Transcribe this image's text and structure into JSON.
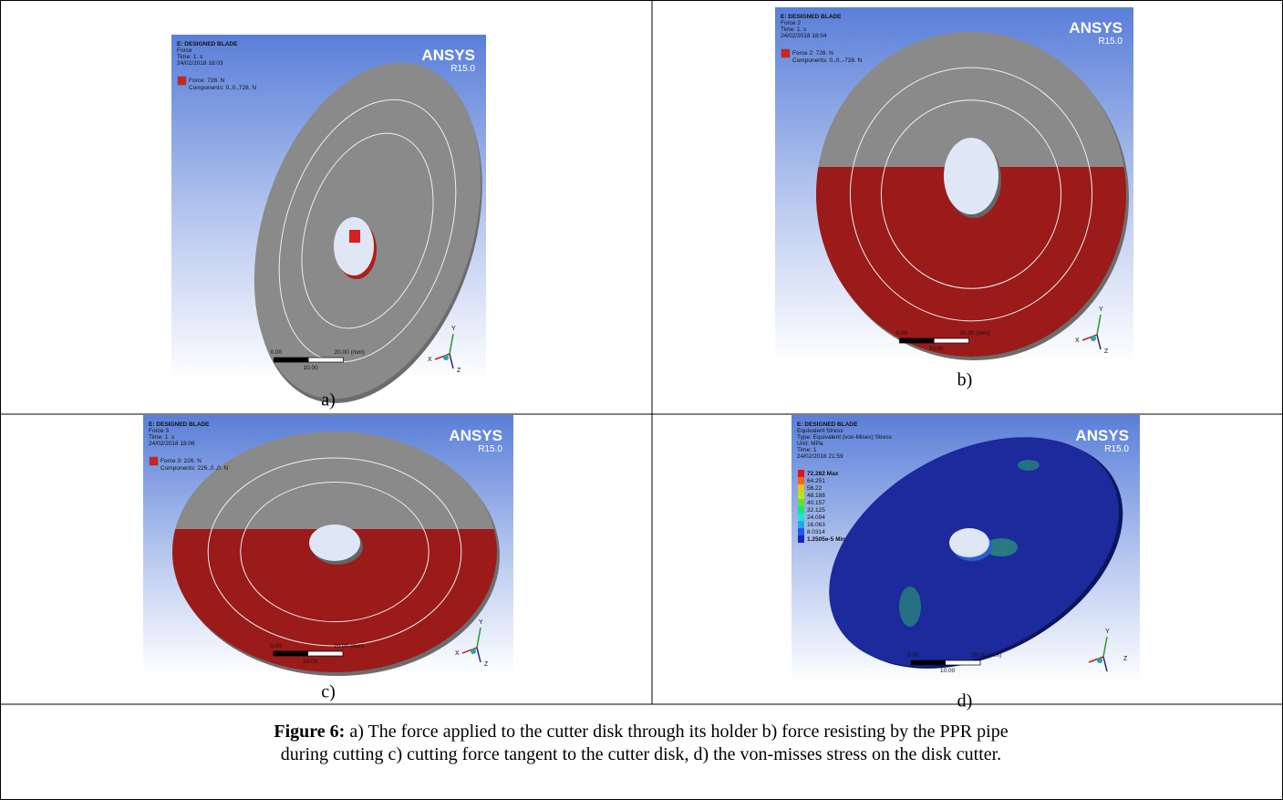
{
  "panels": [
    {
      "label": "a)",
      "header": [
        "E: DESIGNED BLADE",
        "Force",
        "Time: 1. s",
        "24/02/2018 18:03"
      ],
      "legend": [
        "Force: 728. N",
        "Components: 0.,0.,728. N"
      ],
      "brand": "ANSYS",
      "version": "R15.0",
      "scale": {
        "start": "0.00",
        "end": "20.00 (mm)",
        "mid": "10.00"
      },
      "axes": [
        "Y",
        "X",
        "Z"
      ]
    },
    {
      "label": "b)",
      "header": [
        "E: DESIGNED BLADE",
        "Force 2",
        "Time: 1. s",
        "24/02/2018 18:04"
      ],
      "legend": [
        "Force 2: 728. N",
        "Components: 0.,0.,-728. N"
      ],
      "brand": "ANSYS",
      "version": "R15.0",
      "scale": {
        "start": "0.00",
        "end": "20.00 (mm)",
        "mid": "10.00"
      },
      "axes": [
        "Y",
        "X",
        "Z"
      ]
    },
    {
      "label": "c)",
      "header": [
        "E: DESIGNED BLADE",
        "Force 3",
        "Time: 1. s",
        "24/02/2018 18:06"
      ],
      "legend": [
        "Force 3: 226. N",
        "Components: 226.,0.,0. N"
      ],
      "brand": "ANSYS",
      "version": "R15.0",
      "scale": {
        "start": "0.00",
        "end": "20.00 (mm)",
        "mid": "10.00"
      },
      "axes": [
        "Y",
        "X",
        "Z"
      ]
    },
    {
      "label": "d)",
      "header": [
        "E: DESIGNED BLADE",
        "Equivalent Stress",
        "Type: Equivalent (von-Mises) Stress",
        "Unit: MPa",
        "Time: 1",
        "24/02/2018 21:59"
      ],
      "legend": [
        "72.282 Max",
        "64.251",
        "56.22",
        "48.188",
        "40.157",
        "32.125",
        "24.094",
        "16.063",
        "8.0314",
        "1.2505e-5 Min"
      ],
      "brand": "ANSYS",
      "version": "R15.0",
      "scale": {
        "start": "0.00",
        "end": "20.00 (mm)",
        "mid": "10.00"
      },
      "axes": [
        "Y",
        "Z"
      ]
    }
  ],
  "caption": {
    "label": "Figure 6:",
    "lines": [
      " a) The force applied to the cutter disk through its holder b) force resisting by the PPR pipe",
      "during cutting c) cutting force tangent to the cutter disk, d) the von-misses stress on the disk cutter."
    ]
  }
}
